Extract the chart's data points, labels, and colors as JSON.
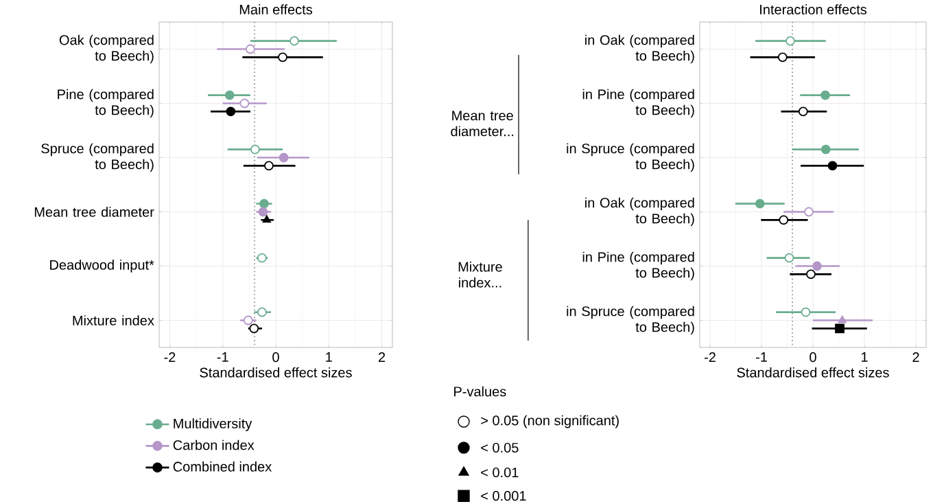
{
  "chart_data": [
    {
      "type": "scatter",
      "orientation": "horizontal",
      "title": "Main effects",
      "xlabel": "Standardised effect sizes",
      "categories": [
        "Oak (compared to Beech)",
        "Pine (compared to Beech)",
        "Spruce (compared to Beech)",
        "Mean tree diameter",
        "Deadwood input*",
        "Mixture index"
      ],
      "series": [
        {
          "name": "Multidiversity",
          "color": "#69ad8e",
          "marker": "circle",
          "values": [
            null,
            -0.87,
            null,
            -0.22,
            null,
            null
          ],
          "errors": [
            null,
            [
              -1.28,
              -0.48
            ],
            null,
            [
              -0.37,
              -0.07
            ],
            null,
            null
          ]
        },
        {
          "color": "#69ad8e",
          "marker": "circle-open",
          "values": [
            0.35,
            null,
            -0.39,
            null,
            -0.26,
            -0.26
          ],
          "errors": [
            [
              -0.48,
              1.15
            ],
            null,
            [
              -0.91,
              0.13
            ],
            null,
            [
              -0.37,
              -0.15
            ],
            [
              -0.41,
              -0.09
            ]
          ]
        },
        {
          "name": "Carbon index",
          "color": "#b596c8",
          "marker": "circle",
          "values": [
            null,
            null,
            0.15,
            -0.24,
            null,
            null
          ],
          "errors": [
            null,
            null,
            [
              -0.35,
              0.63
            ],
            [
              -0.37,
              -0.09
            ],
            null,
            null
          ]
        },
        {
          "color": "#b596c8",
          "marker": "circle-open",
          "values": [
            -0.48,
            -0.59,
            null,
            null,
            null,
            -0.52
          ],
          "errors": [
            [
              -1.11,
              0.17
            ],
            [
              -1.0,
              -0.17
            ],
            null,
            null,
            null,
            [
              -0.67,
              -0.37
            ]
          ]
        },
        {
          "name": "Combined index",
          "color": "#000000",
          "marker": "circle",
          "values": [
            null,
            -0.85,
            null,
            null,
            null,
            null
          ],
          "errors": [
            null,
            [
              -1.23,
              -0.48
            ],
            null,
            null,
            null,
            null
          ]
        },
        {
          "color": "#000000",
          "marker": "circle-open",
          "values": [
            0.13,
            null,
            -0.13,
            null,
            null,
            -0.41
          ],
          "errors": [
            [
              -0.63,
              0.89
            ],
            null,
            [
              -0.61,
              0.37
            ],
            null,
            null,
            [
              -0.52,
              -0.26
            ]
          ]
        },
        {
          "color": "#000000",
          "marker": "triangle",
          "values": [
            null,
            null,
            null,
            -0.17,
            null,
            null
          ],
          "errors": [
            null,
            null,
            null,
            [
              -0.28,
              -0.04
            ],
            null,
            null
          ]
        }
      ],
      "xlim": [
        -2.2,
        2.2
      ],
      "xticks": [
        -2,
        -1,
        0,
        1,
        2
      ],
      "grid": true,
      "legend": "bottom",
      "ref_lines": [
        {
          "axis": "x",
          "value": -0.4,
          "color": "#808080",
          "line_style": "dotted"
        }
      ],
      "annotations": [
        "P-values",
        "> 0.05 (non significant)",
        "< 0.05",
        "< 0.01",
        "< 0.001"
      ]
    },
    {
      "type": "scatter",
      "orientation": "horizontal",
      "title": "Interaction effects",
      "xlabel": "Standardised effect sizes",
      "categories": [
        "in Oak (compared to Beech)",
        "in Pine (compared to Beech)",
        "in Spruce (compared to Beech)",
        "in Oak (compared to Beech)",
        "in Pine (compared to Beech)",
        "in Spruce (compared to Beech)"
      ],
      "series": [
        {
          "color": "#69ad8e",
          "marker": "circle",
          "values": [
            null,
            0.24,
            0.25,
            -1.03,
            null,
            null
          ],
          "errors": [
            null,
            [
              -0.25,
              0.72
            ],
            [
              -0.4,
              0.89
            ],
            [
              -1.51,
              -0.55
            ],
            null,
            null
          ]
        },
        {
          "color": "#69ad8e",
          "marker": "circle-open",
          "values": [
            -0.44,
            null,
            null,
            null,
            -0.46,
            -0.14
          ],
          "errors": [
            [
              -1.12,
              0.25
            ],
            null,
            null,
            null,
            [
              -0.9,
              -0.06
            ],
            [
              -0.72,
              0.44
            ]
          ]
        },
        {
          "color": "#b596c8",
          "marker": "circle",
          "values": [
            null,
            null,
            null,
            null,
            0.08,
            null
          ],
          "errors": [
            null,
            null,
            null,
            null,
            [
              -0.34,
              0.52
            ],
            null
          ]
        },
        {
          "color": "#b596c8",
          "marker": "circle-open",
          "values": [
            null,
            null,
            null,
            -0.08,
            null,
            null
          ],
          "errors": [
            null,
            null,
            null,
            [
              -0.57,
              0.4
            ],
            null,
            null
          ]
        },
        {
          "color": "#b596c8",
          "marker": "triangle",
          "values": [
            null,
            null,
            null,
            null,
            null,
            0.57
          ],
          "errors": [
            null,
            null,
            null,
            null,
            null,
            [
              0.0,
              1.16
            ]
          ]
        },
        {
          "color": "#000000",
          "marker": "circle",
          "values": [
            null,
            null,
            0.38,
            null,
            null,
            null
          ],
          "errors": [
            null,
            null,
            [
              -0.24,
              0.99
            ],
            null,
            null,
            null
          ]
        },
        {
          "color": "#000000",
          "marker": "circle-open",
          "values": [
            -0.59,
            -0.19,
            null,
            -0.57,
            -0.04,
            null
          ],
          "errors": [
            [
              -1.22,
              0.04
            ],
            [
              -0.62,
              0.27
            ],
            null,
            [
              -1.01,
              -0.1
            ],
            [
              -0.45,
              0.36
            ],
            null
          ]
        },
        {
          "color": "#000000",
          "marker": "square",
          "values": [
            null,
            null,
            null,
            null,
            null,
            0.52
          ],
          "errors": [
            null,
            null,
            null,
            null,
            null,
            [
              -0.02,
              1.05
            ]
          ]
        }
      ],
      "xlim": [
        -2.2,
        2.2
      ],
      "xticks": [
        -2,
        -1,
        0,
        1,
        2
      ],
      "grid": true,
      "ref_lines": [
        {
          "axis": "x",
          "value": -0.4,
          "color": "#808080",
          "line_style": "dotted"
        }
      ],
      "annotations": [
        "Mean tree diameter...",
        "Mixture index..."
      ]
    }
  ]
}
